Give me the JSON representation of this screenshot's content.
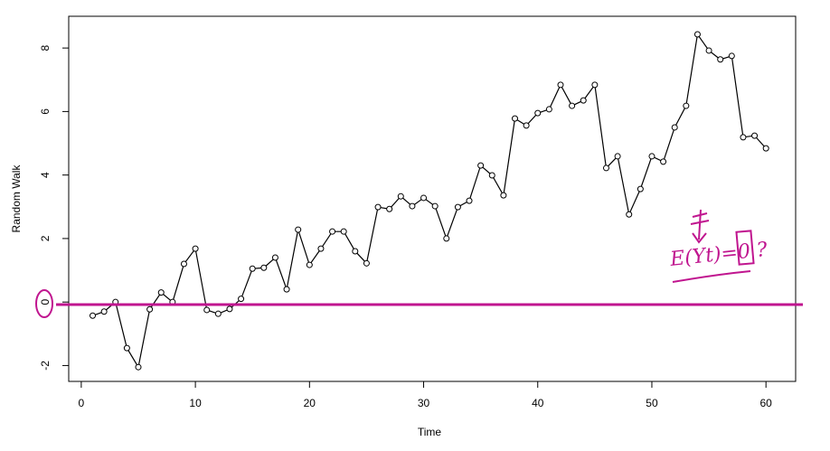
{
  "chart_data": {
    "type": "line",
    "x_label": "Time",
    "y_label": "Random Walk",
    "x": [
      1,
      2,
      3,
      4,
      5,
      6,
      7,
      8,
      9,
      10,
      11,
      12,
      13,
      14,
      15,
      16,
      17,
      18,
      19,
      20,
      21,
      22,
      23,
      24,
      25,
      26,
      27,
      28,
      29,
      30,
      31,
      32,
      33,
      34,
      35,
      36,
      37,
      38,
      39,
      40,
      41,
      42,
      43,
      44,
      45,
      46,
      47,
      48,
      49,
      50,
      51,
      52,
      53,
      54,
      55,
      56,
      57,
      58,
      59,
      60
    ],
    "values": [
      -0.43,
      -0.3,
      0.0,
      -1.45,
      -2.05,
      -0.23,
      0.3,
      0.0,
      1.2,
      1.68,
      -0.25,
      -0.37,
      -0.22,
      0.1,
      1.05,
      1.08,
      1.4,
      0.4,
      2.28,
      1.17,
      1.68,
      2.22,
      2.22,
      1.6,
      1.22,
      2.99,
      2.93,
      3.33,
      3.02,
      3.28,
      3.02,
      2.0,
      2.99,
      3.19,
      4.3,
      3.99,
      3.36,
      5.78,
      5.56,
      5.95,
      6.07,
      6.84,
      6.18,
      6.35,
      6.84,
      4.22,
      4.59,
      2.76,
      3.56,
      4.59,
      4.42,
      5.5,
      6.18,
      8.43,
      7.92,
      7.64,
      7.75,
      5.19,
      5.24,
      4.84
    ],
    "color": "#000000",
    "xlim": [
      -1.1,
      62.6
    ],
    "ylim": [
      -2.5,
      9.0
    ],
    "xticks": [
      0,
      10,
      20,
      30,
      40,
      50,
      60
    ],
    "yticks": [
      -2,
      0,
      2,
      4,
      6,
      8
    ],
    "hline": {
      "value": -0.08,
      "color": "#c0158f"
    },
    "annotation": "E(Yt)=0 ?"
  }
}
